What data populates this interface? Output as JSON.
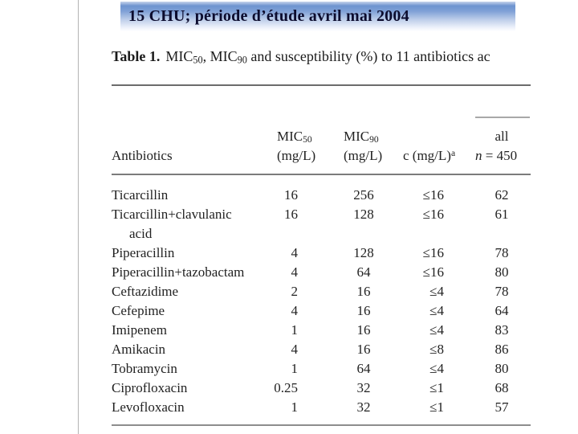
{
  "slide": {
    "title": "15 CHU; période d’étude avril mai 2004",
    "title_color": "#0c0c2e",
    "banner_blue": "#6e94d0",
    "background": "#ffffff"
  },
  "caption": {
    "label": "Table 1.",
    "parts": [
      {
        "t": "MIC"
      },
      {
        "t": "50",
        "sub": true
      },
      {
        "t": ", MIC"
      },
      {
        "t": "90",
        "sub": true
      },
      {
        "t": " and susceptibility (%) to 11 antibiotics ac"
      }
    ]
  },
  "table": {
    "header": {
      "antibiotics": "Antibiotics",
      "mic50_parts": [
        {
          "t": "MIC"
        },
        {
          "t": "50",
          "sub": true
        }
      ],
      "mic50_unit": "(mg/L)",
      "mic90_parts": [
        {
          "t": "MIC"
        },
        {
          "t": "90",
          "sub": true
        }
      ],
      "mic90_unit": "(mg/L)",
      "c_parts": [
        {
          "t": "c (mg/L)"
        },
        {
          "t": "a",
          "sup": true
        }
      ],
      "all": "all",
      "n_parts": [
        {
          "t": "n",
          "i": true
        },
        {
          "t": " = 450"
        }
      ]
    },
    "rows": [
      {
        "name": "Ticarcillin",
        "name2": "",
        "mic50": "16",
        "mic90": "256",
        "c": "≤16",
        "all": "62"
      },
      {
        "name": "Ticarcillin+clavulanic",
        "name2": "acid",
        "mic50": "16",
        "mic90": "128",
        "c": "≤16",
        "all": "61"
      },
      {
        "name": "Piperacillin",
        "name2": "",
        "mic50": "4",
        "mic90": "128",
        "c": "≤16",
        "all": "78"
      },
      {
        "name": "Piperacillin+tazobactam",
        "name2": "",
        "mic50": "4",
        "mic90": "64",
        "c": "≤16",
        "all": "80"
      },
      {
        "name": "Ceftazidime",
        "name2": "",
        "mic50": "2",
        "mic90": "16",
        "c": "≤4",
        "all": "78"
      },
      {
        "name": "Cefepime",
        "name2": "",
        "mic50": "4",
        "mic90": "16",
        "c": "≤4",
        "all": "64"
      },
      {
        "name": "Imipenem",
        "name2": "",
        "mic50": "1",
        "mic90": "16",
        "c": "≤4",
        "all": "83"
      },
      {
        "name": "Amikacin",
        "name2": "",
        "mic50": "4",
        "mic90": "16",
        "c": "≤8",
        "all": "86"
      },
      {
        "name": "Tobramycin",
        "name2": "",
        "mic50": "1",
        "mic90": "64",
        "c": "≤4",
        "all": "80"
      },
      {
        "name": "Ciprofloxacin",
        "name2": "",
        "mic50": "0.25",
        "mic90": "32",
        "c": "≤1",
        "all": "68"
      },
      {
        "name": "Levofloxacin",
        "name2": "",
        "mic50": "1",
        "mic90": "32",
        "c": "≤1",
        "all": "57"
      }
    ]
  },
  "chart_data": {
    "type": "table",
    "title": "Table 1. MIC50, MIC90 and susceptibility (%) to 11 antibiotics ac",
    "columns": [
      "Antibiotics",
      "MIC50 (mg/L)",
      "MIC90 (mg/L)",
      "c (mg/L)a",
      "all n = 450"
    ],
    "rows": [
      [
        "Ticarcillin",
        "16",
        "256",
        "≤16",
        "62"
      ],
      [
        "Ticarcillin+clavulanic acid",
        "16",
        "128",
        "≤16",
        "61"
      ],
      [
        "Piperacillin",
        "4",
        "128",
        "≤16",
        "78"
      ],
      [
        "Piperacillin+tazobactam",
        "4",
        "64",
        "≤16",
        "80"
      ],
      [
        "Ceftazidime",
        "2",
        "16",
        "≤4",
        "78"
      ],
      [
        "Cefepime",
        "4",
        "16",
        "≤4",
        "64"
      ],
      [
        "Imipenem",
        "1",
        "16",
        "≤4",
        "83"
      ],
      [
        "Amikacin",
        "4",
        "16",
        "≤8",
        "86"
      ],
      [
        "Tobramycin",
        "1",
        "64",
        "≤4",
        "80"
      ],
      [
        "Ciprofloxacin",
        "0.25",
        "32",
        "≤1",
        "68"
      ],
      [
        "Levofloxacin",
        "1",
        "32",
        "≤1",
        "57"
      ]
    ]
  }
}
